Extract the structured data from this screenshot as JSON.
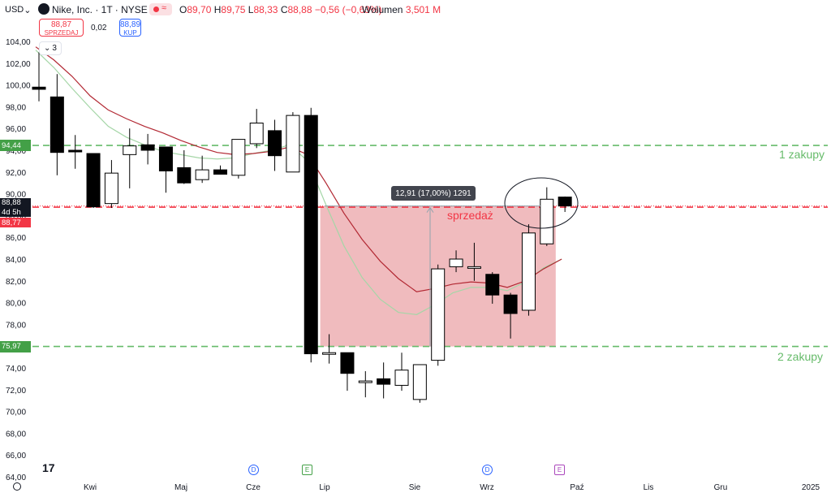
{
  "header": {
    "currency": "USD",
    "symbol_title": "Nike, Inc. · 1T · NYSE",
    "ohlc": {
      "o_label": "O",
      "o": "89,70",
      "h_label": "H",
      "h": "89,75",
      "l_label": "L",
      "l": "88,33",
      "c_label": "C",
      "c": "88,88",
      "change": "−0,56 (−0,63%)"
    },
    "volume_label": "Wolumen",
    "volume": "3,501 M"
  },
  "trade": {
    "sell_price": "88,87",
    "sell_label": "SPRZEDAJ",
    "spread": "0,02",
    "buy_price": "88,89",
    "buy_label": "KUP"
  },
  "indicators_collapsed_count": "3",
  "measure_label": "12,91 (17,00%) 1291",
  "price_labels": {
    "level_upper": "94,44",
    "last": "88,88",
    "countdown": "4d 5h",
    "bid": "88,77",
    "level_lower": "75,97"
  },
  "annotations": {
    "buy_1": "1 zakupy",
    "buy_2": "2 zakupy",
    "sell": "sprzedaż"
  },
  "colors": {
    "up_fill": "#ffffff",
    "down_fill": "#000000",
    "ma_fast": "#a5d6a7",
    "ma_slow": "#b22833",
    "green_level": "#66bb6a",
    "red_level": "#f23645",
    "zone": "#efb7bb"
  },
  "events": [
    {
      "type": "D",
      "cls": "d",
      "x": 312
    },
    {
      "type": "E",
      "cls": "e",
      "x": 378
    },
    {
      "type": "D",
      "cls": "d",
      "x": 600
    },
    {
      "type": "E",
      "cls": "ep",
      "x": 689
    }
  ],
  "chart_data": {
    "type": "candlestick",
    "ylim": [
      64,
      106
    ],
    "y_ticks": [
      "64,00",
      "66,00",
      "68,00",
      "70,00",
      "72,00",
      "74,00",
      "76,00",
      "78,00",
      "80,00",
      "82,00",
      "84,00",
      "86,00",
      "88,00",
      "90,00",
      "92,00",
      "94,00",
      "96,00",
      "98,00",
      "100,00",
      "102,00",
      "104,00"
    ],
    "x_ticks": [
      "Kwi",
      "Maj",
      "Cze",
      "Lip",
      "Sie",
      "Wrz",
      "Paź",
      "Lis",
      "Gru",
      "2025"
    ],
    "candles": [
      {
        "date": "2024-03-18",
        "o": 99.8,
        "h": 103.0,
        "l": 98.5,
        "c": 99.6
      },
      {
        "date": "2024-03-25",
        "o": 98.9,
        "h": 101.0,
        "l": 91.7,
        "c": 93.8
      },
      {
        "date": "2024-04-01",
        "o": 94.0,
        "h": 95.4,
        "l": 92.3,
        "c": 93.9
      },
      {
        "date": "2024-04-08",
        "o": 93.7,
        "h": 93.7,
        "l": 88.7,
        "c": 88.8
      },
      {
        "date": "2024-04-15",
        "o": 89.1,
        "h": 93.1,
        "l": 88.7,
        "c": 91.9
      },
      {
        "date": "2024-04-22",
        "o": 93.6,
        "h": 96.0,
        "l": 90.5,
        "c": 94.4
      },
      {
        "date": "2024-04-29",
        "o": 94.5,
        "h": 95.5,
        "l": 92.7,
        "c": 94.0
      },
      {
        "date": "2024-05-06",
        "o": 94.3,
        "h": 94.3,
        "l": 90.1,
        "c": 92.1
      },
      {
        "date": "2024-05-13",
        "o": 92.4,
        "h": 94.0,
        "l": 90.9,
        "c": 91.0
      },
      {
        "date": "2024-05-20",
        "o": 91.3,
        "h": 93.5,
        "l": 91.0,
        "c": 92.2
      },
      {
        "date": "2024-05-27",
        "o": 92.2,
        "h": 92.6,
        "l": 91.8,
        "c": 91.8
      },
      {
        "date": "2024-06-03",
        "o": 91.7,
        "h": 95.0,
        "l": 91.4,
        "c": 95.0
      },
      {
        "date": "2024-06-10",
        "o": 94.6,
        "h": 97.8,
        "l": 94.2,
        "c": 96.5
      },
      {
        "date": "2024-06-17",
        "o": 95.8,
        "h": 96.8,
        "l": 92.1,
        "c": 93.5
      },
      {
        "date": "2024-06-24",
        "o": 92.0,
        "h": 97.5,
        "l": 92.0,
        "c": 97.2
      },
      {
        "date": "2024-07-01",
        "o": 97.2,
        "h": 97.9,
        "l": 74.5,
        "c": 75.3
      },
      {
        "date": "2024-07-08",
        "o": 75.4,
        "h": 77.1,
        "l": 74.4,
        "c": 75.4
      },
      {
        "date": "2024-07-15",
        "o": 75.4,
        "h": 75.4,
        "l": 71.9,
        "c": 73.5
      },
      {
        "date": "2024-07-22",
        "o": 72.8,
        "h": 73.7,
        "l": 71.3,
        "c": 72.8
      },
      {
        "date": "2024-07-29",
        "o": 73.0,
        "h": 74.5,
        "l": 71.2,
        "c": 72.5
      },
      {
        "date": "2024-08-05",
        "o": 72.4,
        "h": 75.4,
        "l": 71.9,
        "c": 73.8
      },
      {
        "date": "2024-08-12",
        "o": 71.1,
        "h": 74.3,
        "l": 70.8,
        "c": 74.3
      },
      {
        "date": "2024-08-19",
        "o": 74.7,
        "h": 83.5,
        "l": 74.2,
        "c": 83.1
      },
      {
        "date": "2024-08-26",
        "o": 83.3,
        "h": 84.8,
        "l": 82.8,
        "c": 84.0
      },
      {
        "date": "2024-09-02",
        "o": 83.3,
        "h": 85.5,
        "l": 82.0,
        "c": 83.3
      },
      {
        "date": "2024-09-09",
        "o": 82.6,
        "h": 82.8,
        "l": 79.9,
        "c": 80.7
      },
      {
        "date": "2024-09-16",
        "o": 80.7,
        "h": 80.9,
        "l": 76.7,
        "c": 79.0
      },
      {
        "date": "2024-09-23",
        "o": 79.3,
        "h": 87.2,
        "l": 78.8,
        "c": 86.4
      },
      {
        "date": "2024-09-30",
        "o": 85.4,
        "h": 90.6,
        "l": 85.2,
        "c": 89.5
      },
      {
        "date": "2024-10-07",
        "o": 89.7,
        "h": 89.75,
        "l": 88.33,
        "c": 88.88
      }
    ],
    "ma_fast": [
      103.2,
      101.6,
      99.7,
      97.9,
      96.2,
      95.2,
      94.5,
      93.9,
      93.6,
      93.3,
      93.2,
      93.3,
      93.7,
      94.0,
      94.5,
      93.0,
      89.0,
      85.2,
      82.3,
      80.3,
      79.1,
      78.9,
      79.8,
      80.9,
      81.4,
      81.4,
      81.1,
      81.9,
      83.2,
      84.0
    ],
    "ma_slow": [
      103.5,
      102.3,
      100.8,
      99.0,
      97.7,
      96.9,
      96.2,
      95.6,
      94.9,
      94.3,
      93.8,
      93.6,
      93.7,
      93.9,
      94.3,
      93.6,
      91.0,
      88.2,
      85.8,
      83.8,
      82.2,
      81.0,
      81.3,
      81.7,
      81.9,
      81.8,
      81.4,
      82.0,
      83.1,
      84.0
    ],
    "levels": [
      {
        "value": 94.44,
        "style": "dash",
        "color": "green"
      },
      {
        "value": 75.97,
        "style": "dash",
        "color": "green"
      },
      {
        "value": 88.77,
        "style": "dash",
        "color": "red"
      },
      {
        "value": 88.88,
        "style": "dotted",
        "color": "red"
      }
    ],
    "zone": {
      "from_date": "2024-07-08",
      "to_date": "2024-09-30",
      "from_price": 75.97,
      "to_price": 88.88
    }
  }
}
